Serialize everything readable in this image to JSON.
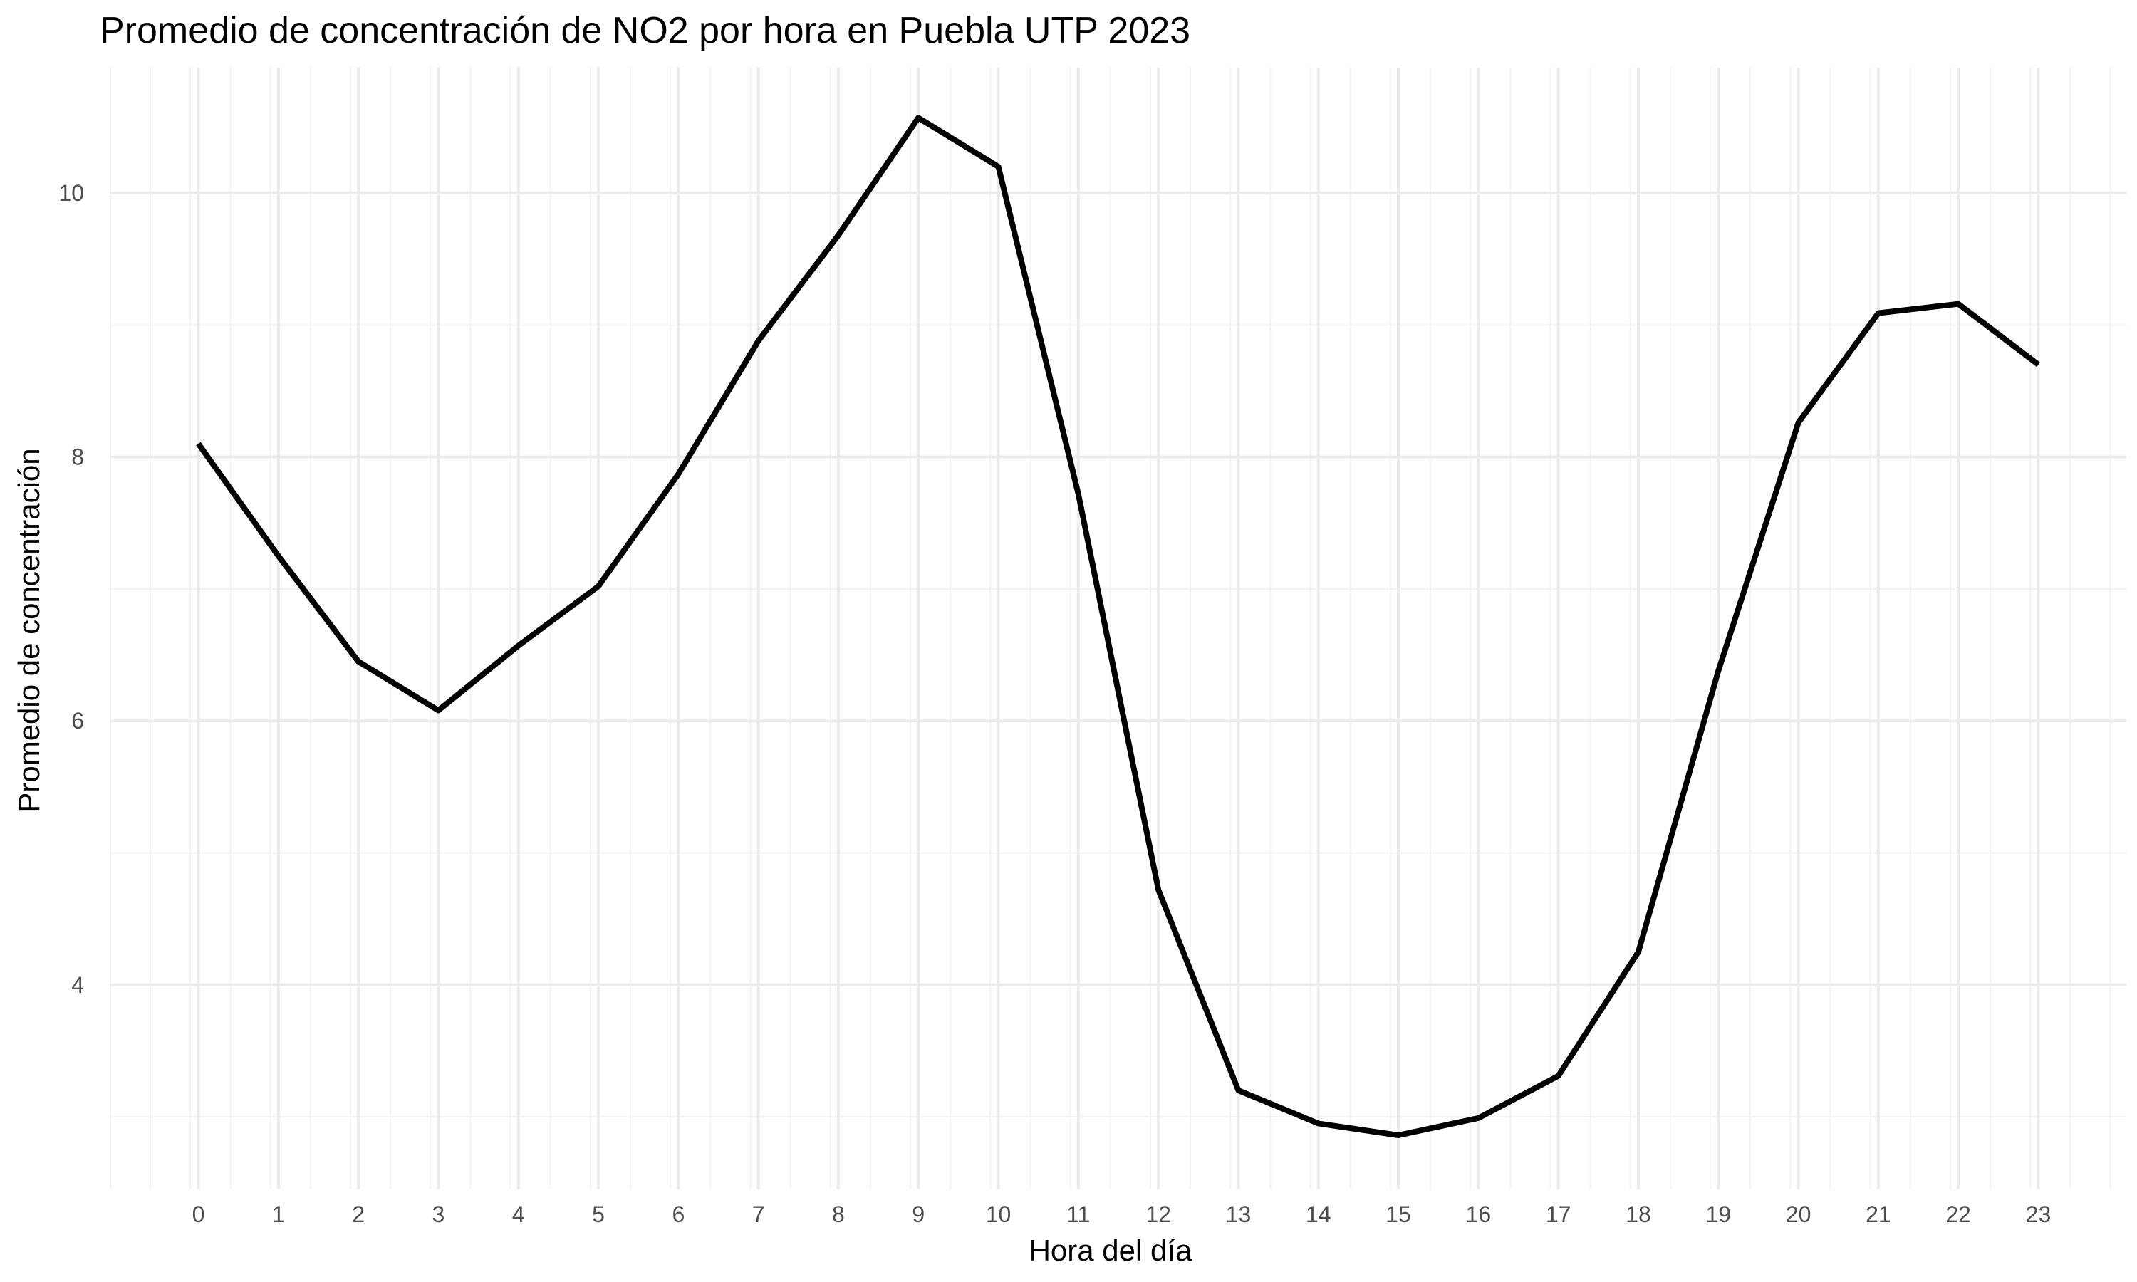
{
  "chart_data": {
    "type": "line",
    "title": "Promedio de concentración de NO2 por hora en Puebla UTP 2023",
    "xlabel": "Hora del día",
    "ylabel": "Promedio de concentración",
    "x": [
      0,
      1,
      2,
      3,
      4,
      5,
      6,
      7,
      8,
      9,
      10,
      11,
      12,
      13,
      14,
      15,
      16,
      17,
      18,
      19,
      20,
      21,
      22,
      23
    ],
    "x_tick_labels": [
      "0",
      "1",
      "2",
      "3",
      "4",
      "5",
      "6",
      "7",
      "8",
      "9",
      "10",
      "11",
      "12",
      "13",
      "14",
      "15",
      "16",
      "17",
      "18",
      "19",
      "20",
      "21",
      "22",
      "23"
    ],
    "y_ticks": [
      4,
      6,
      8,
      10
    ],
    "y_tick_labels": [
      "4",
      "6",
      "8",
      "10"
    ],
    "series": [
      {
        "values": [
          8.1,
          7.25,
          6.45,
          6.08,
          6.57,
          7.02,
          7.87,
          8.88,
          9.68,
          10.57,
          10.2,
          7.72,
          4.72,
          3.2,
          2.95,
          2.86,
          2.99,
          3.31,
          4.25,
          6.38,
          8.26,
          9.09,
          9.16,
          8.7
        ]
      }
    ],
    "xlim": [
      -1.1,
      24.1
    ],
    "ylim": [
      2.45,
      10.95
    ],
    "grid": true,
    "legend": "none",
    "line_color": "#000000",
    "background": "#ffffff"
  }
}
